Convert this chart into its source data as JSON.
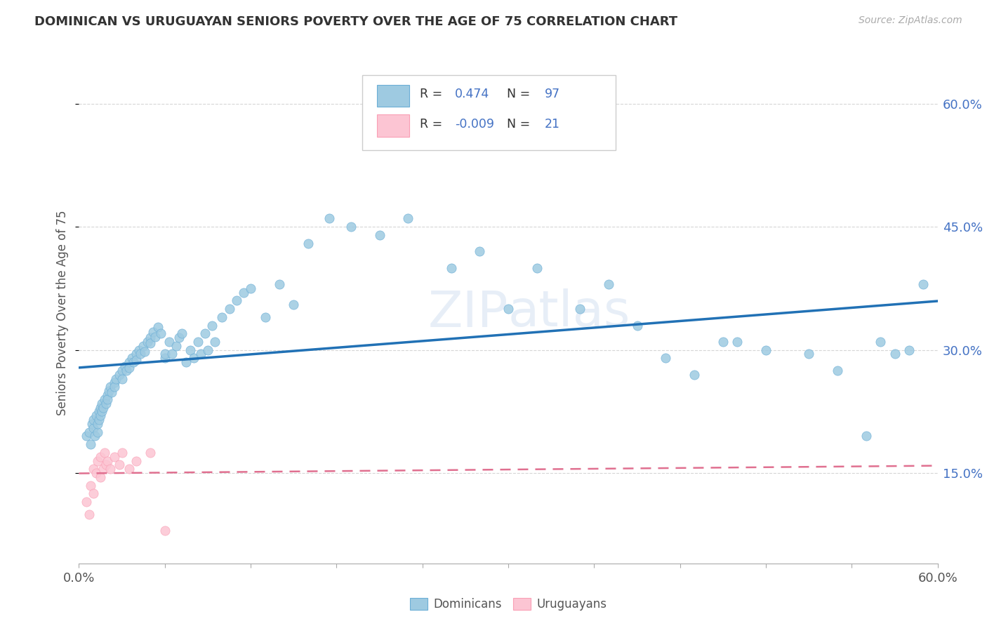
{
  "title": "DOMINICAN VS URUGUAYAN SENIORS POVERTY OVER THE AGE OF 75 CORRELATION CHART",
  "source": "Source: ZipAtlas.com",
  "ylabel": "Seniors Poverty Over the Age of 75",
  "ytick_labels": [
    "15.0%",
    "30.0%",
    "45.0%",
    "60.0%"
  ],
  "ytick_values": [
    0.15,
    0.3,
    0.45,
    0.6
  ],
  "xlim": [
    0.0,
    0.6
  ],
  "ylim": [
    0.04,
    0.65
  ],
  "dominican_R": 0.474,
  "dominican_N": 97,
  "uruguayan_R": -0.009,
  "uruguayan_N": 21,
  "dominican_color": "#9ecae1",
  "dominican_edge": "#6baed6",
  "uruguayan_color": "#fcc5d3",
  "uruguayan_edge": "#fa9fb5",
  "line_dominican_color": "#2171b5",
  "line_uruguayan_color": "#e07090",
  "background": "#ffffff",
  "grid_color": "#cccccc",
  "title_color": "#333333",
  "blue_text": "#4472c4",
  "dom_x": [
    0.005,
    0.007,
    0.008,
    0.009,
    0.01,
    0.01,
    0.011,
    0.012,
    0.013,
    0.013,
    0.014,
    0.014,
    0.015,
    0.015,
    0.016,
    0.016,
    0.017,
    0.018,
    0.019,
    0.02,
    0.02,
    0.021,
    0.022,
    0.023,
    0.025,
    0.025,
    0.026,
    0.028,
    0.03,
    0.03,
    0.032,
    0.033,
    0.035,
    0.035,
    0.037,
    0.038,
    0.04,
    0.04,
    0.042,
    0.043,
    0.045,
    0.046,
    0.048,
    0.05,
    0.05,
    0.052,
    0.053,
    0.055,
    0.057,
    0.06,
    0.06,
    0.063,
    0.065,
    0.068,
    0.07,
    0.072,
    0.075,
    0.078,
    0.08,
    0.083,
    0.085,
    0.088,
    0.09,
    0.093,
    0.095,
    0.1,
    0.105,
    0.11,
    0.115,
    0.12,
    0.13,
    0.14,
    0.15,
    0.16,
    0.175,
    0.19,
    0.21,
    0.23,
    0.26,
    0.28,
    0.3,
    0.32,
    0.35,
    0.37,
    0.39,
    0.41,
    0.43,
    0.45,
    0.46,
    0.48,
    0.51,
    0.53,
    0.55,
    0.56,
    0.57,
    0.58,
    0.59
  ],
  "dom_y": [
    0.195,
    0.2,
    0.185,
    0.21,
    0.205,
    0.215,
    0.195,
    0.22,
    0.2,
    0.21,
    0.225,
    0.215,
    0.23,
    0.22,
    0.235,
    0.225,
    0.23,
    0.24,
    0.235,
    0.245,
    0.24,
    0.25,
    0.255,
    0.248,
    0.26,
    0.255,
    0.265,
    0.27,
    0.275,
    0.265,
    0.28,
    0.275,
    0.285,
    0.278,
    0.29,
    0.285,
    0.295,
    0.288,
    0.3,
    0.295,
    0.305,
    0.298,
    0.31,
    0.315,
    0.308,
    0.322,
    0.316,
    0.328,
    0.32,
    0.29,
    0.295,
    0.31,
    0.295,
    0.305,
    0.315,
    0.32,
    0.285,
    0.3,
    0.29,
    0.31,
    0.295,
    0.32,
    0.3,
    0.33,
    0.31,
    0.34,
    0.35,
    0.36,
    0.37,
    0.375,
    0.34,
    0.38,
    0.355,
    0.43,
    0.46,
    0.45,
    0.44,
    0.46,
    0.4,
    0.42,
    0.35,
    0.4,
    0.35,
    0.38,
    0.33,
    0.29,
    0.27,
    0.31,
    0.31,
    0.3,
    0.295,
    0.275,
    0.195,
    0.31,
    0.295,
    0.3,
    0.38
  ],
  "uru_x": [
    0.005,
    0.007,
    0.008,
    0.01,
    0.01,
    0.012,
    0.013,
    0.015,
    0.015,
    0.017,
    0.018,
    0.019,
    0.02,
    0.022,
    0.025,
    0.028,
    0.03,
    0.035,
    0.04,
    0.05,
    0.06
  ],
  "uru_y": [
    0.115,
    0.1,
    0.135,
    0.155,
    0.125,
    0.15,
    0.165,
    0.145,
    0.17,
    0.155,
    0.175,
    0.16,
    0.165,
    0.155,
    0.17,
    0.16,
    0.175,
    0.155,
    0.165,
    0.175,
    0.08
  ]
}
